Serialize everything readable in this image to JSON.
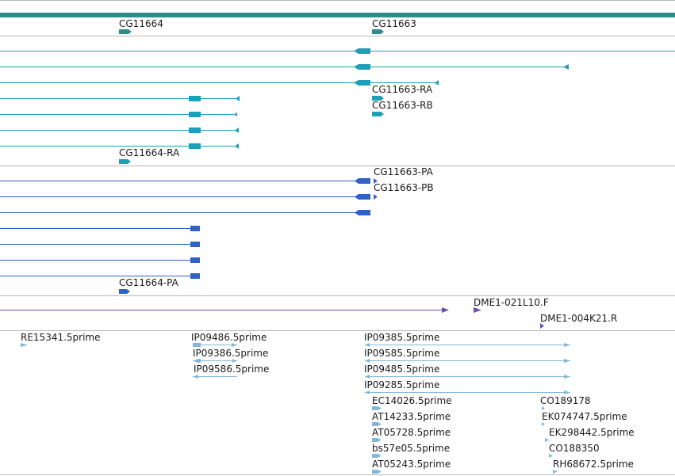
{
  "colors": {
    "gene": "#2f8c8c",
    "mrna": "#1e9fb8",
    "protein": "#2f62c2",
    "clone_end": "#6a4fb0",
    "est": "#84b6d8",
    "divider": "#b8b8b8"
  },
  "tracks": {
    "genes": {
      "label_cg11664": "CG11664",
      "label_cg11663": "CG11663"
    },
    "transcripts": {
      "label_ra_right": "CG11663-RA",
      "label_rb_right": "CG11663-RB",
      "label_ra_left": "CG11664-RA"
    },
    "proteins": {
      "label_pa_right": "CG11663-PA",
      "label_pb_right": "CG11663-PB",
      "label_pa_left": "CG11664-PA"
    },
    "clones": {
      "label_f": "DME1-021L10.F",
      "label_r": "DME1-004K21.R"
    },
    "ests": {
      "re15341": "RE15341.5prime",
      "ip09486": "IP09486.5prime",
      "ip09386": "IP09386.5prime",
      "ip09586": "IP09586.5prime",
      "ip09385": "IP09385.5prime",
      "ip09585": "IP09585.5prime",
      "ip09485": "IP09485.5prime",
      "ip09285": "IP09285.5prime",
      "ec14026": "EC14026.5prime",
      "at14233": "AT14233.5prime",
      "at05728": "AT05728.5prime",
      "bs57e05": "bs57e05.5prime",
      "at05243": "AT05243.5prime",
      "co189178": "CO189178",
      "ek074747": "EK074747.5prime",
      "ek298442": "EK298442.5prime",
      "co188350": "CO188350",
      "rh68672": "RH68672.5prime"
    }
  }
}
